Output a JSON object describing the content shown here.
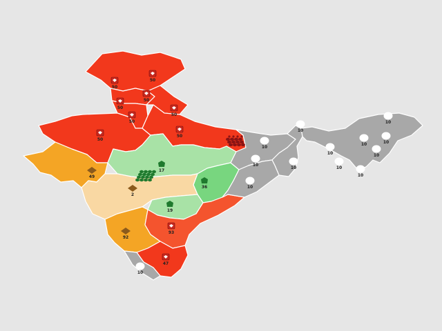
{
  "colors": {
    "background": "#e6e6e6",
    "red": "#f2381c",
    "red_orange": "#f4542e",
    "orange": "#f4a525",
    "peach": "#f9d8a3",
    "light_green": "#a8e2a6",
    "green": "#78d67f",
    "gray": "#a8a8a8",
    "icon_red": "#c8281e",
    "icon_dark_red": "#8a1414",
    "icon_green": "#1f7a2e",
    "icon_brown": "#8b5a1c",
    "icon_white": "#ffffff"
  },
  "markers": [
    {
      "id": "jk",
      "icon": "red-square-icon",
      "label": "50"
    },
    {
      "id": "hp-left",
      "icon": "red-square-icon",
      "label": "50"
    },
    {
      "id": "hp",
      "icon": "red-square-icon",
      "label": "50"
    },
    {
      "id": "pb",
      "icon": "red-square-icon",
      "label": "50"
    },
    {
      "id": "uk",
      "icon": "red-square-icon",
      "label": "50"
    },
    {
      "id": "hr",
      "icon": "red-square-icon",
      "label": "50"
    },
    {
      "id": "rj",
      "icon": "red-square-icon",
      "label": "50"
    },
    {
      "id": "up",
      "icon": "red-square-icon",
      "label": "50"
    },
    {
      "id": "bihar",
      "icon": "red-cluster-icon",
      "label": ""
    },
    {
      "id": "sikkim",
      "icon": "white-circle-icon",
      "label": "10"
    },
    {
      "id": "ne-1",
      "icon": "white-circle-icon",
      "label": "10"
    },
    {
      "id": "ne-2",
      "icon": "white-circle-icon",
      "label": "10"
    },
    {
      "id": "ne-3",
      "icon": "white-circle-icon",
      "label": "10"
    },
    {
      "id": "ne-4",
      "icon": "white-circle-icon",
      "label": "10"
    },
    {
      "id": "ne-5",
      "icon": "white-circle-icon",
      "label": "10"
    },
    {
      "id": "ne-6",
      "icon": "white-circle-icon",
      "label": "10"
    },
    {
      "id": "ne-7",
      "icon": "white-circle-icon",
      "label": "10"
    },
    {
      "id": "ne-8",
      "icon": "white-circle-icon",
      "label": "10"
    },
    {
      "id": "jharkhand",
      "icon": "white-circle-icon",
      "label": "10"
    },
    {
      "id": "wb",
      "icon": "white-circle-icon",
      "label": "10"
    },
    {
      "id": "odisha",
      "icon": "white-circle-icon",
      "label": "10"
    },
    {
      "id": "gujarat",
      "icon": "brown-diamond-icon",
      "label": "49"
    },
    {
      "id": "maharashtra",
      "icon": "brown-diamond-icon",
      "label": "2"
    },
    {
      "id": "mp",
      "icon": "green-shape-icon",
      "label": "17"
    },
    {
      "id": "mp-cluster",
      "icon": "green-cluster-icon",
      "label": ""
    },
    {
      "id": "chhattisgarh",
      "icon": "green-shape-icon",
      "label": "36"
    },
    {
      "id": "telangana",
      "icon": "green-shape-icon",
      "label": "19"
    },
    {
      "id": "karnataka",
      "icon": "brown-diamond-icon",
      "label": "92"
    },
    {
      "id": "ap",
      "icon": "red-square-icon",
      "label": "93"
    },
    {
      "id": "tn",
      "icon": "red-square-icon",
      "label": "47"
    },
    {
      "id": "kerala",
      "icon": "white-circle-icon",
      "label": "10"
    }
  ]
}
